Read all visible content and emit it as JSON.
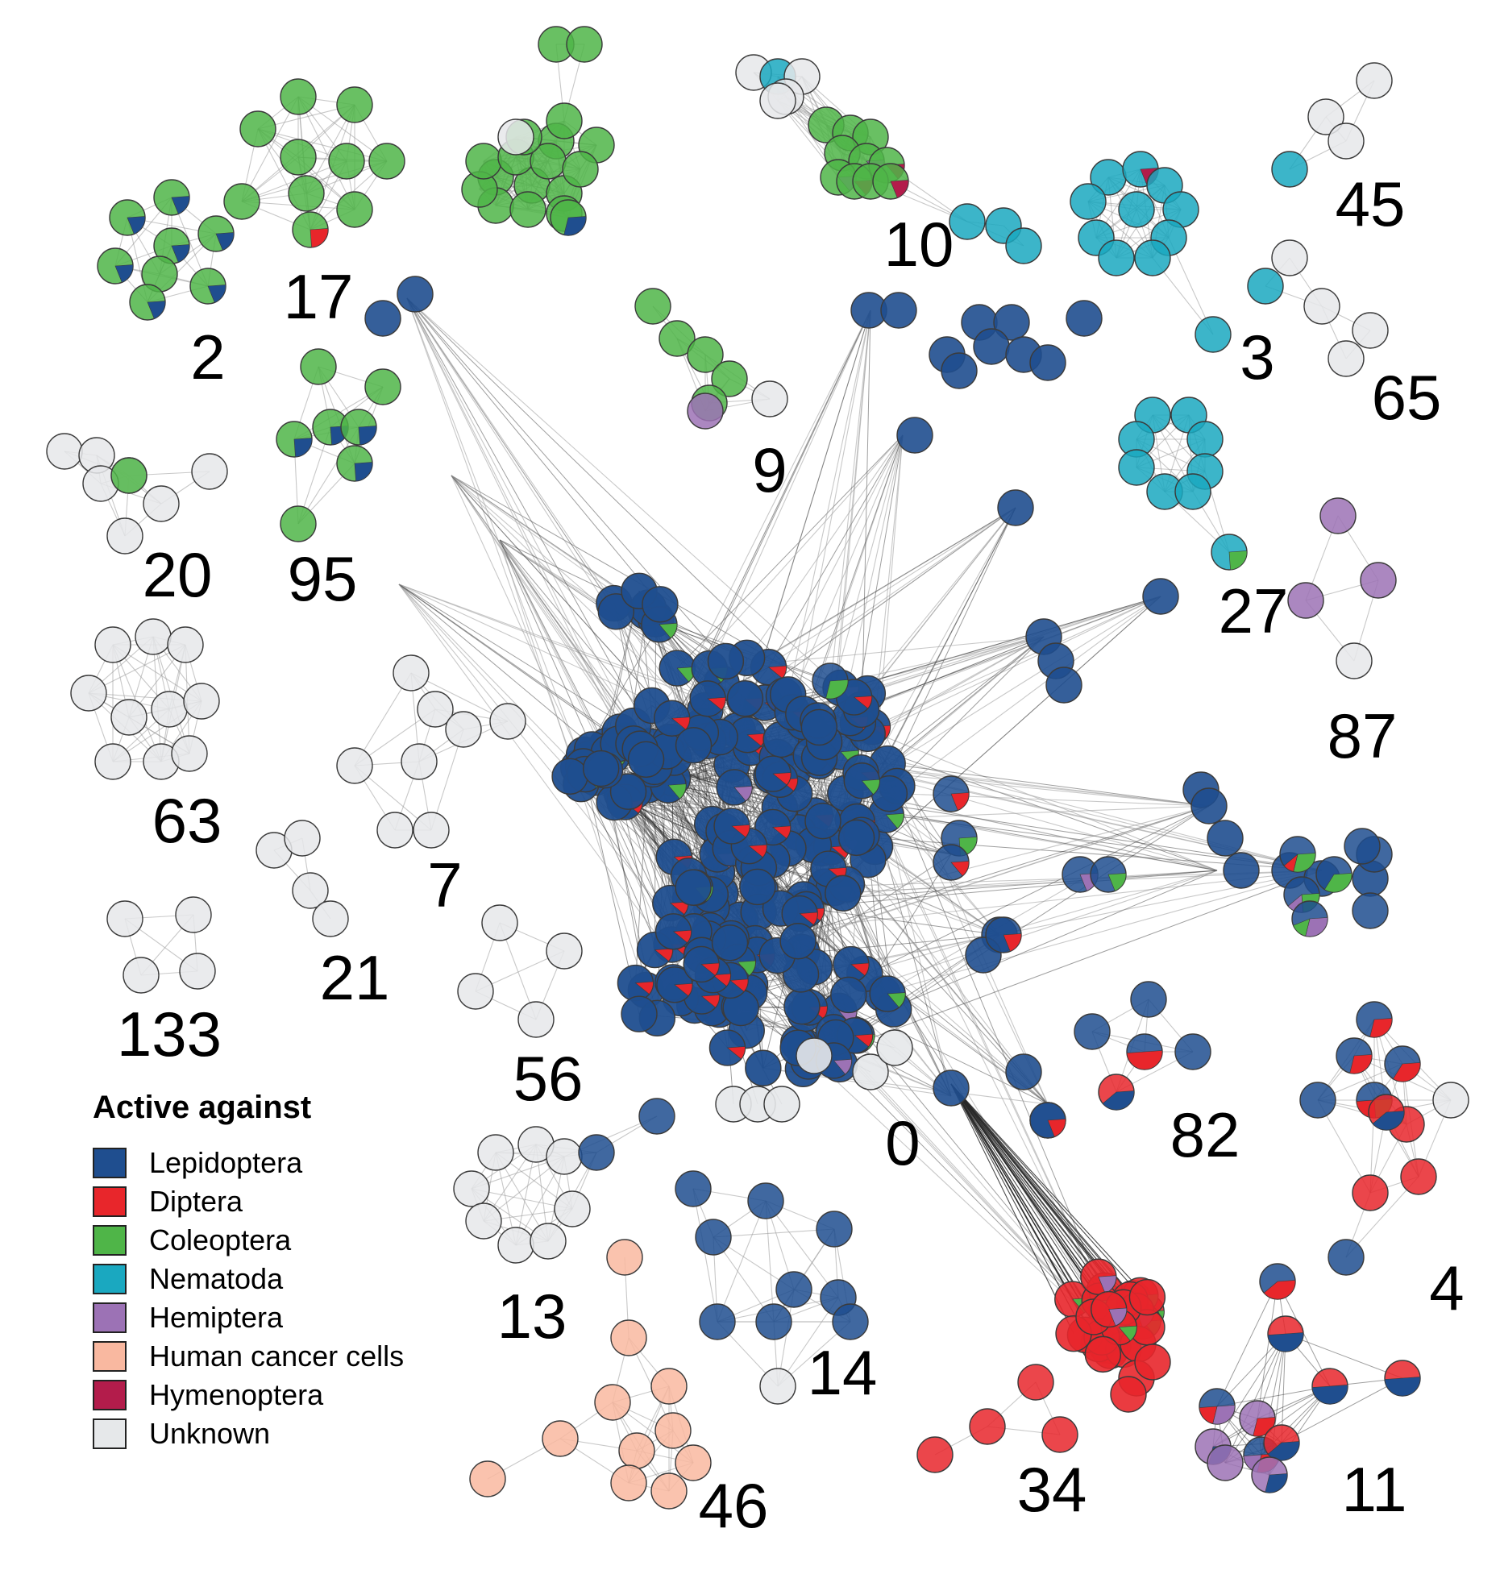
{
  "legend": {
    "title": "Active against",
    "items": [
      {
        "label": "Lepidoptera",
        "color": "#1f4e8f",
        "key": "lep"
      },
      {
        "label": "Diptera",
        "color": "#e8262b",
        "key": "dip"
      },
      {
        "label": "Coleoptera",
        "color": "#4fb548",
        "key": "col"
      },
      {
        "label": "Nematoda",
        "color": "#1aa8c0",
        "key": "nem"
      },
      {
        "label": "Hemiptera",
        "color": "#9c72b5",
        "key": "hem"
      },
      {
        "label": "Human cancer cells",
        "color": "#f9b8a0",
        "key": "hum"
      },
      {
        "label": "Hymenoptera",
        "color": "#b31c4b",
        "key": "hym"
      },
      {
        "label": "Unknown",
        "color": "#e6e8ea",
        "key": "unk"
      }
    ]
  },
  "clusters": [
    {
      "label": "0",
      "main_type": "Lepidoptera"
    },
    {
      "label": "2",
      "main_type": "Coleoptera"
    },
    {
      "label": "3",
      "main_type": "Nematoda"
    },
    {
      "label": "4",
      "main_type": "Lepidoptera"
    },
    {
      "label": "7",
      "main_type": "Unknown"
    },
    {
      "label": "9",
      "main_type": "Coleoptera"
    },
    {
      "label": "10",
      "main_type": "Coleoptera"
    },
    {
      "label": "11",
      "main_type": "Lepidoptera"
    },
    {
      "label": "13",
      "main_type": "Unknown"
    },
    {
      "label": "14",
      "main_type": "Lepidoptera"
    },
    {
      "label": "17",
      "main_type": "Coleoptera"
    },
    {
      "label": "20",
      "main_type": "Unknown"
    },
    {
      "label": "21",
      "main_type": "Unknown"
    },
    {
      "label": "27",
      "main_type": "Nematoda"
    },
    {
      "label": "34",
      "main_type": "Diptera"
    },
    {
      "label": "45",
      "main_type": "Unknown"
    },
    {
      "label": "46",
      "main_type": "Human cancer cells"
    },
    {
      "label": "56",
      "main_type": "Unknown"
    },
    {
      "label": "63",
      "main_type": "Unknown"
    },
    {
      "label": "65",
      "main_type": "Unknown"
    },
    {
      "label": "82",
      "main_type": "Lepidoptera"
    },
    {
      "label": "87",
      "main_type": "Hemiptera"
    },
    {
      "label": "95",
      "main_type": "Coleoptera"
    },
    {
      "label": "133",
      "main_type": "Unknown"
    }
  ]
}
